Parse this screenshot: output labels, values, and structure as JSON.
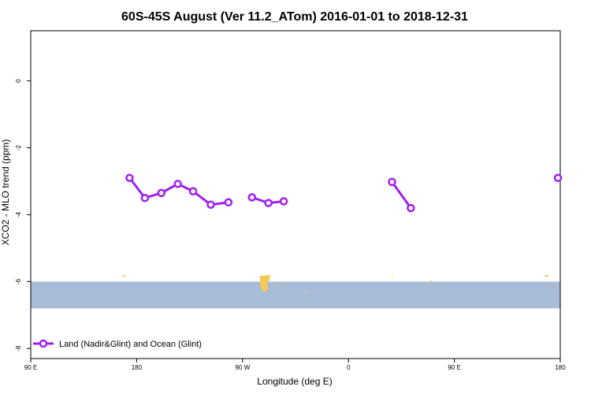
{
  "chart_data": {
    "type": "line",
    "title": "60S-45S August (Ver 11.2_ATom)   2016-01-01 to 2018-12-31",
    "xlabel": "Longitude (deg E)",
    "ylabel": "XCO2 - MLO trend (ppm)",
    "xlim": [
      90,
      450
    ],
    "ylim": [
      -8.3,
      1.5
    ],
    "x_ticks": [
      {
        "value": 90,
        "label": "90 E"
      },
      {
        "value": 180,
        "label": "180"
      },
      {
        "value": 270,
        "label": "90 W"
      },
      {
        "value": 360,
        "label": "0"
      },
      {
        "value": 450,
        "label": "90 E"
      },
      {
        "value": 540,
        "label": "180"
      }
    ],
    "y_ticks": [
      {
        "value": 0,
        "label": "0"
      },
      {
        "value": -2,
        "label": "-2"
      },
      {
        "value": -4,
        "label": "-4"
      },
      {
        "value": -6,
        "label": "-6"
      },
      {
        "value": -8,
        "label": "-8"
      }
    ],
    "grid": false,
    "legend_position": "bottom-left",
    "band": {
      "y_range": [
        -6.8,
        -6.0
      ],
      "color": "#a8bcd8"
    },
    "land_color": "#f5c955",
    "series": [
      {
        "name": "Land (Nadir&Glint) and Ocean (Glint)",
        "color": "#a020f0",
        "segments": [
          {
            "x": [
              174,
              187,
              201,
              215,
              228,
              243,
              258
            ],
            "y": [
              -2.9,
              -3.5,
              -3.35,
              -3.08,
              -3.3,
              -3.7,
              -3.63
            ]
          },
          {
            "x": [
              278,
              292,
              305
            ],
            "y": [
              -3.48,
              -3.65,
              -3.6
            ]
          },
          {
            "x": [
              397,
              413
            ],
            "y": [
              -3.02,
              -3.8
            ]
          },
          {
            "x": [
              538
            ],
            "y": [
              -2.9
            ]
          }
        ]
      }
    ]
  }
}
